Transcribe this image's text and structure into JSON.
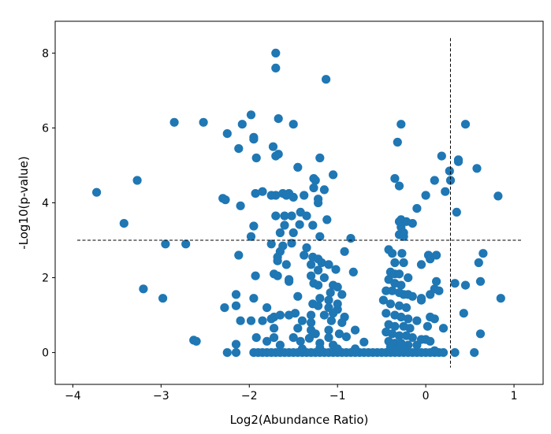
{
  "chart_data": {
    "type": "scatter",
    "title": "",
    "xlabel": "Log2(Abundance Ratio)",
    "ylabel": "-Log10(p-value)",
    "xlim": [
      -4.2,
      1.33
    ],
    "ylim": [
      -0.85,
      8.85
    ],
    "xticks": [
      -4,
      -3,
      -2,
      -1,
      0,
      1
    ],
    "yticks": [
      0,
      2,
      4,
      6,
      8
    ],
    "grid": false,
    "legend": "none",
    "color": "#1f77b4",
    "threshold_lines": {
      "vertical_x": 0.28,
      "vertical_y_range": [
        -0.4,
        8.4
      ],
      "horizontal_y": 3.0,
      "horizontal_x_range": [
        -3.95,
        1.08
      ],
      "style": "dashed",
      "color": "#000000"
    },
    "points": [
      [
        -1.7,
        8.0
      ],
      [
        -1.7,
        7.6
      ],
      [
        -1.13,
        7.3
      ],
      [
        -2.85,
        6.15
      ],
      [
        -2.52,
        6.15
      ],
      [
        -1.98,
        6.35
      ],
      [
        -2.08,
        6.1
      ],
      [
        -1.67,
        6.25
      ],
      [
        -1.5,
        6.1
      ],
      [
        -2.25,
        5.85
      ],
      [
        -1.95,
        5.75
      ],
      [
        -1.95,
        5.7
      ],
      [
        -1.73,
        5.5
      ],
      [
        -1.67,
        5.3
      ],
      [
        -1.7,
        5.25
      ],
      [
        -2.12,
        5.45
      ],
      [
        -1.92,
        5.2
      ],
      [
        -1.2,
        5.2
      ],
      [
        -1.45,
        4.95
      ],
      [
        -1.05,
        4.75
      ],
      [
        -1.27,
        4.65
      ],
      [
        -1.25,
        4.6
      ],
      [
        -1.27,
        4.4
      ],
      [
        -1.15,
        4.35
      ],
      [
        -3.27,
        4.6
      ],
      [
        -3.73,
        4.28
      ],
      [
        -2.3,
        4.12
      ],
      [
        -2.27,
        4.08
      ],
      [
        -1.93,
        4.25
      ],
      [
        -1.85,
        4.3
      ],
      [
        -1.7,
        4.2
      ],
      [
        -1.75,
        4.2
      ],
      [
        -1.62,
        4.25
      ],
      [
        -1.55,
        4.25
      ],
      [
        -1.58,
        4.2
      ],
      [
        -1.5,
        4.15
      ],
      [
        -1.38,
        4.2
      ],
      [
        -1.22,
        4.1
      ],
      [
        -1.22,
        4.0
      ],
      [
        -2.1,
        3.92
      ],
      [
        -1.7,
        3.65
      ],
      [
        -1.6,
        3.65
      ],
      [
        -1.52,
        3.65
      ],
      [
        -1.42,
        3.75
      ],
      [
        -1.35,
        3.65
      ],
      [
        -1.12,
        3.55
      ],
      [
        -3.42,
        3.45
      ],
      [
        -1.95,
        3.38
      ],
      [
        -1.6,
        3.4
      ],
      [
        -1.43,
        3.42
      ],
      [
        -1.28,
        3.4
      ],
      [
        -1.65,
        3.2
      ],
      [
        -1.5,
        3.2
      ],
      [
        -1.98,
        3.1
      ],
      [
        -1.2,
        3.1
      ],
      [
        -0.85,
        3.05
      ],
      [
        -2.95,
        2.9
      ],
      [
        -2.72,
        2.9
      ],
      [
        -1.75,
        2.9
      ],
      [
        -1.52,
        2.92
      ],
      [
        -1.62,
        2.85
      ],
      [
        -1.35,
        2.8
      ],
      [
        -1.65,
        2.7
      ],
      [
        -1.68,
        2.55
      ],
      [
        -1.38,
        2.6
      ],
      [
        -1.28,
        2.55
      ],
      [
        -1.22,
        2.5
      ],
      [
        -2.12,
        2.6
      ],
      [
        -0.92,
        2.7
      ],
      [
        -1.68,
        2.45
      ],
      [
        -1.58,
        2.35
      ],
      [
        -1.3,
        2.35
      ],
      [
        -1.18,
        2.4
      ],
      [
        -1.1,
        2.35
      ],
      [
        -1.22,
        2.2
      ],
      [
        -1.02,
        2.22
      ],
      [
        -0.82,
        2.15
      ],
      [
        -1.72,
        2.1
      ],
      [
        -1.68,
        2.05
      ],
      [
        -1.93,
        2.05
      ],
      [
        -1.3,
        2.05
      ],
      [
        -1.15,
        2.0
      ],
      [
        -1.55,
        1.95
      ],
      [
        -1.55,
        1.9
      ],
      [
        -1.27,
        1.85
      ],
      [
        -1.22,
        1.8
      ],
      [
        -1.05,
        1.8
      ],
      [
        -1.0,
        1.75
      ],
      [
        -3.2,
        1.7
      ],
      [
        -1.08,
        1.6
      ],
      [
        -0.95,
        1.55
      ],
      [
        -2.15,
        1.55
      ],
      [
        -1.45,
        1.5
      ],
      [
        -1.2,
        1.45
      ],
      [
        -1.1,
        1.4
      ],
      [
        -2.98,
        1.45
      ],
      [
        -1.95,
        1.45
      ],
      [
        -1.28,
        1.3
      ],
      [
        -1.22,
        1.25
      ],
      [
        -2.15,
        1.25
      ],
      [
        -2.28,
        1.2
      ],
      [
        -1.8,
        1.2
      ],
      [
        -1.1,
        1.2
      ],
      [
        -1.0,
        1.15
      ],
      [
        -1.48,
        1.05
      ],
      [
        -1.65,
        1.0
      ],
      [
        -1.72,
        0.95
      ],
      [
        -1.55,
        1.0
      ],
      [
        -1.3,
        1.0
      ],
      [
        -1.15,
        1.0
      ],
      [
        -0.92,
        0.95
      ],
      [
        -2.1,
        0.85
      ],
      [
        -1.98,
        0.85
      ],
      [
        -1.85,
        0.85
      ],
      [
        -1.75,
        0.9
      ],
      [
        -1.4,
        0.85
      ],
      [
        -1.3,
        0.8
      ],
      [
        -1.07,
        0.85
      ],
      [
        -0.95,
        0.8
      ],
      [
        -1.72,
        0.65
      ],
      [
        -1.45,
        0.65
      ],
      [
        -1.3,
        0.6
      ],
      [
        -1.1,
        0.6
      ],
      [
        -0.8,
        0.6
      ],
      [
        -1.92,
        0.4
      ],
      [
        -1.72,
        0.4
      ],
      [
        -1.5,
        0.4
      ],
      [
        -1.32,
        0.38
      ],
      [
        -1.1,
        0.4
      ],
      [
        -0.9,
        0.42
      ],
      [
        -2.63,
        0.33
      ],
      [
        -2.6,
        0.3
      ],
      [
        -1.8,
        0.3
      ],
      [
        -1.42,
        0.3
      ],
      [
        -1.2,
        0.25
      ],
      [
        -0.7,
        0.28
      ],
      [
        -2.15,
        0.22
      ],
      [
        -1.65,
        0.2
      ],
      [
        -1.05,
        0.2
      ],
      [
        -2.25,
        0.0
      ],
      [
        -2.15,
        0.0
      ],
      [
        -1.95,
        0.0
      ],
      [
        -1.9,
        0.0
      ],
      [
        -1.85,
        0.0
      ],
      [
        -1.8,
        0.0
      ],
      [
        -1.75,
        0.0
      ],
      [
        -1.7,
        0.0
      ],
      [
        -1.65,
        0.0
      ],
      [
        -1.6,
        0.0
      ],
      [
        -1.55,
        0.0
      ],
      [
        -1.5,
        0.0
      ],
      [
        -1.45,
        0.0
      ],
      [
        -1.4,
        0.0
      ],
      [
        -1.35,
        0.0
      ],
      [
        -1.3,
        0.0
      ],
      [
        -1.25,
        0.0
      ],
      [
        -1.2,
        0.0
      ],
      [
        -1.15,
        0.0
      ],
      [
        -1.1,
        0.0
      ],
      [
        -1.05,
        0.0
      ],
      [
        -1.0,
        0.0
      ],
      [
        -0.95,
        0.0
      ],
      [
        -0.9,
        0.0
      ],
      [
        -0.85,
        0.0
      ],
      [
        -0.8,
        0.0
      ],
      [
        -0.75,
        0.0
      ],
      [
        -0.7,
        0.0
      ],
      [
        -0.65,
        0.0
      ],
      [
        -0.6,
        0.0
      ],
      [
        -0.55,
        0.0
      ],
      [
        -0.5,
        0.0
      ],
      [
        -0.45,
        0.0
      ],
      [
        -0.4,
        0.0
      ],
      [
        -0.35,
        0.0
      ],
      [
        -0.3,
        0.0
      ],
      [
        -0.25,
        0.0
      ],
      [
        -0.2,
        0.0
      ],
      [
        -0.15,
        0.0
      ],
      [
        -0.1,
        0.0
      ],
      [
        -0.05,
        0.0
      ],
      [
        0.0,
        0.0
      ],
      [
        0.05,
        0.0
      ],
      [
        0.1,
        0.0
      ],
      [
        0.15,
        0.0
      ],
      [
        0.2,
        0.0
      ],
      [
        0.33,
        0.0
      ],
      [
        0.55,
        0.0
      ],
      [
        -1.4,
        0.1
      ],
      [
        -1.2,
        0.12
      ],
      [
        -1.0,
        0.1
      ],
      [
        -0.8,
        0.1
      ],
      [
        -0.4,
        0.1
      ],
      [
        -0.3,
        0.12
      ],
      [
        -1.25,
        0.5
      ],
      [
        -0.98,
        0.5
      ],
      [
        -1.0,
        1.3
      ],
      [
        -1.05,
        1.05
      ],
      [
        -0.28,
        6.1
      ],
      [
        -0.32,
        5.62
      ],
      [
        -0.35,
        4.65
      ],
      [
        -0.3,
        4.45
      ],
      [
        -0.28,
        3.55
      ],
      [
        -0.22,
        3.5
      ],
      [
        -0.3,
        3.5
      ],
      [
        -0.28,
        3.35
      ],
      [
        -0.25,
        3.2
      ],
      [
        -0.3,
        3.15
      ],
      [
        -0.25,
        3.1
      ],
      [
        -0.15,
        3.45
      ],
      [
        -0.1,
        3.85
      ],
      [
        0.0,
        4.2
      ],
      [
        -0.42,
        2.75
      ],
      [
        -0.38,
        2.65
      ],
      [
        -0.27,
        2.65
      ],
      [
        -0.35,
        2.4
      ],
      [
        -0.25,
        2.4
      ],
      [
        -0.4,
        2.15
      ],
      [
        -0.35,
        2.1
      ],
      [
        -0.3,
        2.1
      ],
      [
        -0.2,
        2.0
      ],
      [
        -0.42,
        1.95
      ],
      [
        -0.35,
        1.85
      ],
      [
        -0.28,
        1.8
      ],
      [
        -0.45,
        1.65
      ],
      [
        -0.38,
        1.65
      ],
      [
        -0.3,
        1.6
      ],
      [
        -0.25,
        1.55
      ],
      [
        -0.2,
        1.55
      ],
      [
        -0.15,
        1.5
      ],
      [
        -0.05,
        1.45
      ],
      [
        -0.48,
        1.4
      ],
      [
        -0.4,
        1.3
      ],
      [
        -0.3,
        1.25
      ],
      [
        -0.22,
        1.2
      ],
      [
        -0.45,
        1.05
      ],
      [
        -0.35,
        1.0
      ],
      [
        -0.28,
        0.95
      ],
      [
        -0.2,
        0.9
      ],
      [
        -0.1,
        0.85
      ],
      [
        -0.42,
        0.75
      ],
      [
        -0.35,
        0.7
      ],
      [
        -0.25,
        0.7
      ],
      [
        -0.18,
        0.65
      ],
      [
        -0.45,
        0.55
      ],
      [
        -0.38,
        0.5
      ],
      [
        -0.3,
        0.45
      ],
      [
        -0.22,
        0.45
      ],
      [
        -0.15,
        0.4
      ],
      [
        -0.42,
        0.3
      ],
      [
        -0.35,
        0.25
      ],
      [
        -0.28,
        0.25
      ],
      [
        -0.2,
        0.2
      ],
      [
        -0.1,
        0.2
      ],
      [
        -0.4,
        0.15
      ],
      [
        -0.32,
        0.05
      ],
      [
        -0.25,
        0.1
      ],
      [
        0.03,
        2.6
      ],
      [
        0.05,
        2.5
      ],
      [
        0.12,
        2.6
      ],
      [
        -0.05,
        2.35
      ],
      [
        0.12,
        1.9
      ],
      [
        0.1,
        1.7
      ],
      [
        0.15,
        1.65
      ],
      [
        0.05,
        1.55
      ],
      [
        -0.05,
        1.4
      ],
      [
        0.05,
        0.95
      ],
      [
        0.1,
        0.9
      ],
      [
        0.2,
        0.65
      ],
      [
        0.02,
        0.7
      ],
      [
        0.0,
        0.35
      ],
      [
        0.05,
        0.3
      ],
      [
        -0.05,
        0.35
      ],
      [
        0.1,
        0.05
      ],
      [
        0.18,
        5.25
      ],
      [
        0.22,
        4.3
      ],
      [
        0.27,
        4.85
      ],
      [
        0.28,
        4.6
      ],
      [
        0.37,
        5.15
      ],
      [
        0.37,
        5.1
      ],
      [
        0.58,
        4.92
      ],
      [
        0.82,
        4.18
      ],
      [
        0.35,
        3.75
      ],
      [
        0.33,
        1.85
      ],
      [
        0.45,
        1.8
      ],
      [
        0.6,
        2.4
      ],
      [
        0.65,
        2.65
      ],
      [
        0.62,
        1.9
      ],
      [
        0.85,
        1.45
      ],
      [
        0.43,
        1.05
      ],
      [
        0.62,
        0.5
      ],
      [
        0.45,
        6.1
      ],
      [
        0.1,
        4.6
      ]
    ]
  }
}
